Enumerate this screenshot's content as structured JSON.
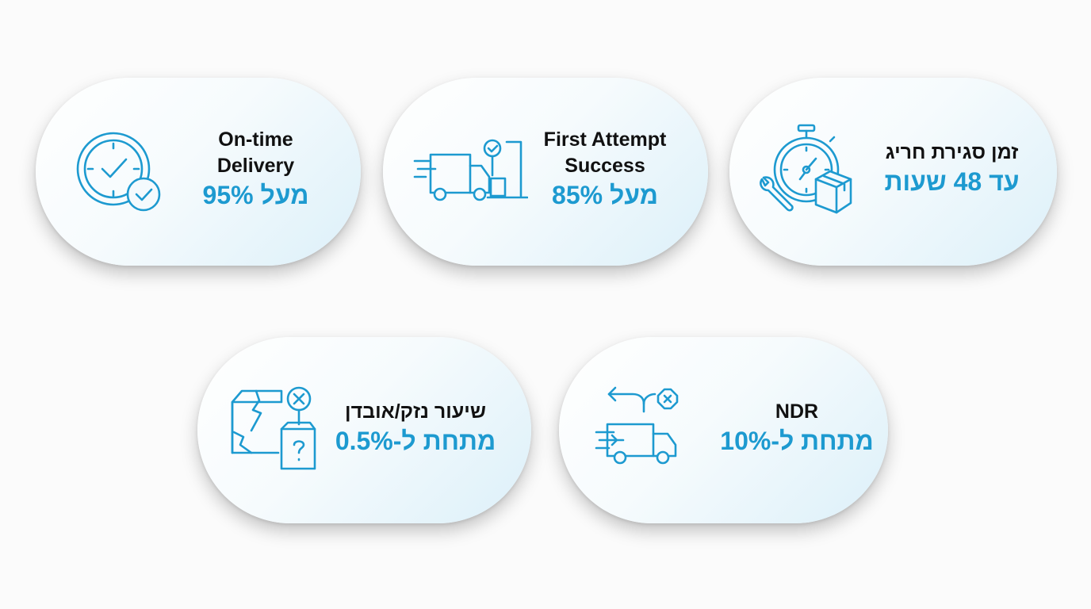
{
  "accent_color": "#1d9ad0",
  "cards": [
    {
      "title_lines": [
        "On-time",
        "Delivery"
      ],
      "value": "מעל 95%",
      "icon": "clock-check-icon"
    },
    {
      "title_lines": [
        "First Attempt",
        "Success"
      ],
      "value": "מעל 85%",
      "icon": "delivery-truck-check-icon"
    },
    {
      "title_lines": [
        "זמן סגירת חריג"
      ],
      "value": "עד 48 שעות",
      "icon": "stopwatch-wrench-box-icon"
    },
    {
      "title_lines": [
        "שיעור נזק/אובדן"
      ],
      "value": "מתחת ל-0.5%",
      "icon": "damaged-box-question-icon"
    },
    {
      "title_lines": [
        "NDR"
      ],
      "value": "מתחת ל-10%",
      "icon": "truck-return-x-icon"
    }
  ]
}
